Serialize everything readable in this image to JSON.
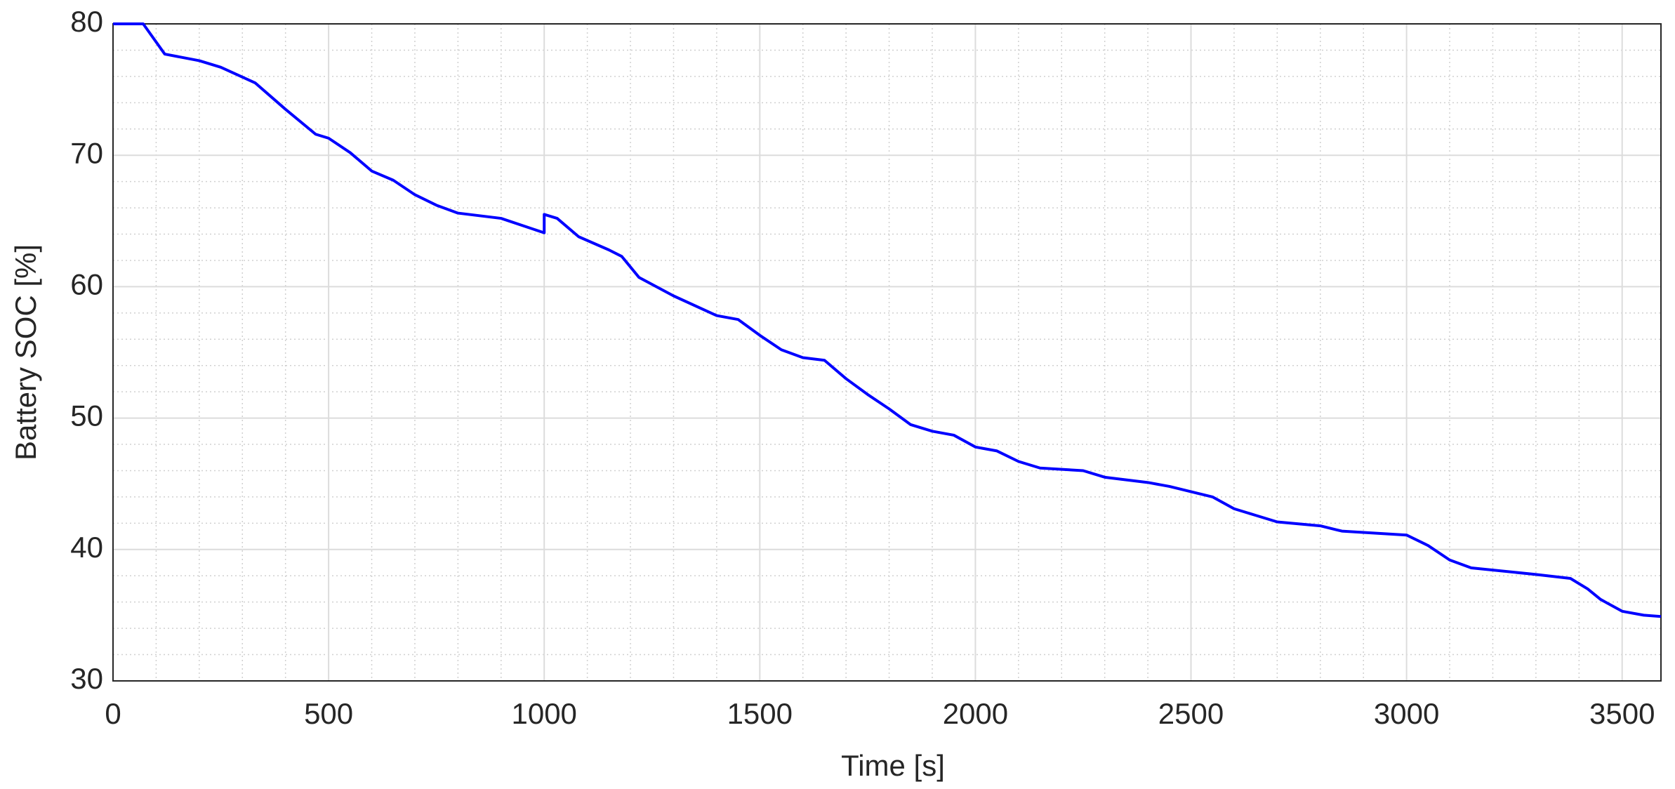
{
  "chart_data": {
    "type": "line",
    "xlabel": "Time [s]",
    "ylabel": "Battery SOC [%]",
    "x": [
      0,
      70,
      120,
      200,
      250,
      330,
      400,
      470,
      500,
      550,
      600,
      650,
      700,
      750,
      800,
      900,
      1000,
      1000,
      1030,
      1080,
      1150,
      1180,
      1220,
      1300,
      1400,
      1450,
      1500,
      1550,
      1600,
      1650,
      1700,
      1750,
      1800,
      1850,
      1900,
      1950,
      2000,
      2050,
      2100,
      2150,
      2250,
      2300,
      2400,
      2450,
      2500,
      2550,
      2600,
      2650,
      2700,
      2800,
      2850,
      2950,
      3000,
      3050,
      3100,
      3150,
      3300,
      3380,
      3420,
      3450,
      3500,
      3550,
      3590
    ],
    "series": [
      {
        "name": "Battery SOC",
        "color": "#0000ff",
        "values": [
          80,
          80,
          77.7,
          77.2,
          76.7,
          75.5,
          73.5,
          71.6,
          71.3,
          70.2,
          68.8,
          68.1,
          67,
          66.2,
          65.6,
          65.2,
          64.1,
          65.5,
          65.2,
          63.8,
          62.8,
          62.3,
          60.7,
          59.3,
          57.8,
          57.5,
          56.3,
          55.2,
          54.6,
          54.4,
          53,
          51.8,
          50.7,
          49.5,
          49,
          48.7,
          47.8,
          47.5,
          46.7,
          46.2,
          46,
          45.5,
          45.1,
          44.8,
          44.4,
          44,
          43.1,
          42.6,
          42.1,
          41.8,
          41.4,
          41.2,
          41.1,
          40.3,
          39.2,
          38.6,
          38.1,
          37.8,
          37,
          36.2,
          35.3,
          35,
          34.9
        ]
      }
    ],
    "xlim": [
      0,
      3590
    ],
    "xticks": [
      0,
      500,
      1000,
      1500,
      2000,
      2500,
      3000,
      3500
    ],
    "ylim": [
      30,
      80
    ],
    "yticks": [
      30,
      40,
      50,
      60,
      70,
      80
    ],
    "grid": true,
    "minor_grid": true
  }
}
